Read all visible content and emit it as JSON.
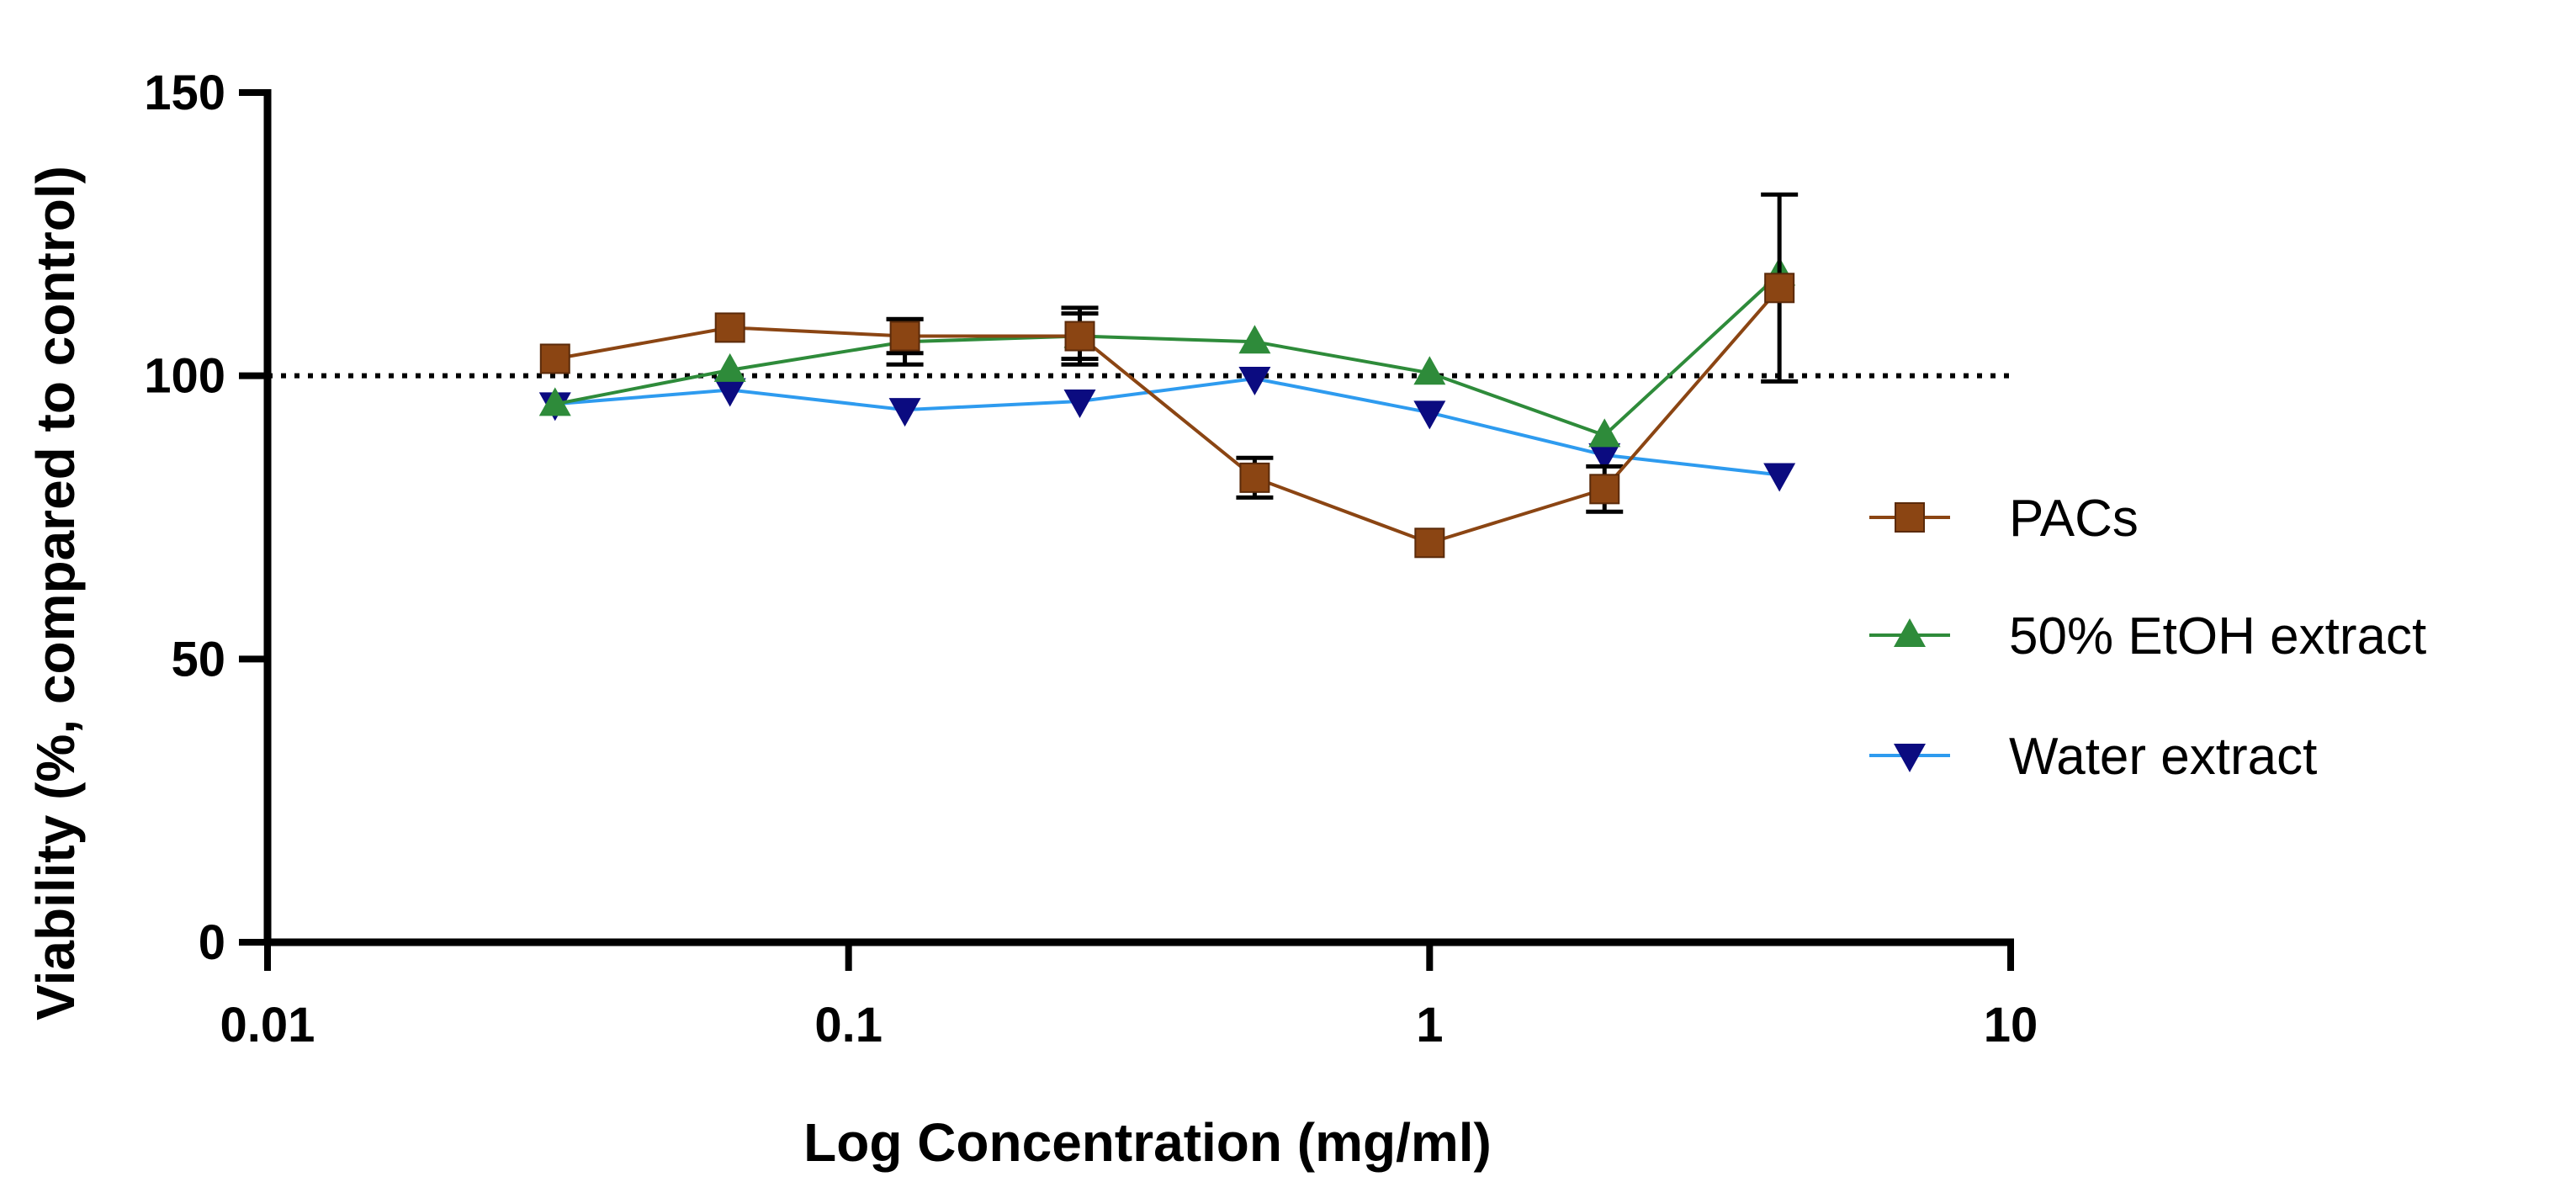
{
  "chart_data": {
    "type": "line",
    "title": "",
    "xlabel": "Log Concentration (mg/ml)",
    "ylabel": "Viability (%, compared to control)",
    "x_scale": "log",
    "xlim": [
      0.01,
      10
    ],
    "ylim": [
      0,
      150
    ],
    "x_ticks": [
      0.01,
      0.1,
      1,
      10
    ],
    "x_tick_labels": [
      "0.01",
      "0.1",
      "1",
      "10"
    ],
    "y_ticks": [
      0,
      50,
      100,
      150
    ],
    "y_tick_labels": [
      "0",
      "50",
      "100",
      "150"
    ],
    "reference_line": {
      "y": 100,
      "style": "dotted",
      "color": "#000000"
    },
    "grid": false,
    "legend_position": "right",
    "x": [
      0.03125,
      0.0625,
      0.125,
      0.25,
      0.5,
      1,
      2,
      4
    ],
    "series": [
      {
        "name": "PACs",
        "color": "#8B4513",
        "marker": "square",
        "values": [
          103,
          108.5,
          107,
          107,
          82,
          70.5,
          80,
          115.5
        ],
        "error": [
          0,
          0,
          3,
          5,
          3.5,
          0,
          4,
          16.5
        ]
      },
      {
        "name": "50% EtOH extract",
        "color": "#2E8B3A",
        "marker": "triangle-up",
        "values": [
          95,
          101,
          106,
          107,
          106,
          100.5,
          89.5,
          118
        ],
        "error": [
          0,
          0,
          4,
          4,
          0,
          0,
          0,
          0
        ]
      },
      {
        "name": "Water extract",
        "color": "#2E9BEF",
        "marker_color": "#0B0B80",
        "marker": "triangle-down",
        "values": [
          95,
          97.5,
          94,
          95.5,
          99.5,
          93.5,
          86,
          82.5
        ],
        "error": [
          0,
          0,
          0,
          0,
          0,
          0,
          0,
          0
        ]
      }
    ]
  }
}
